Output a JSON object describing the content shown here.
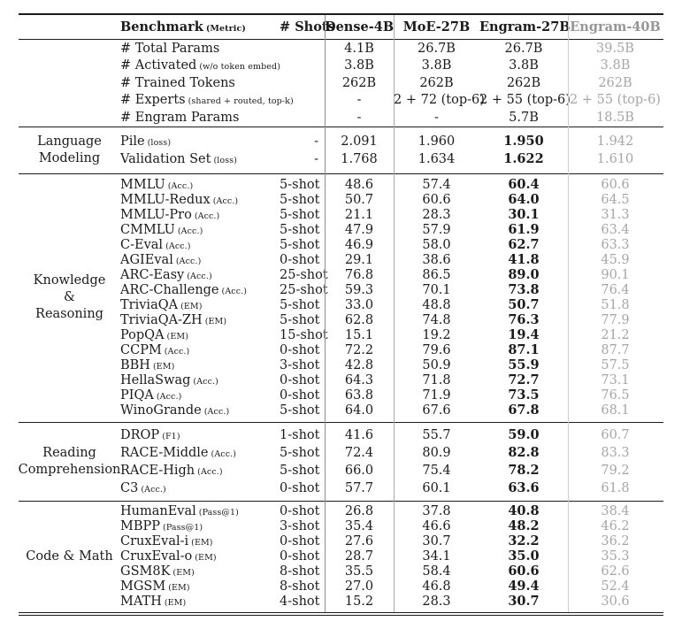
{
  "colors": {
    "text": "#1b1b1b",
    "muted_column_text": "#a6a6a6",
    "rule_dark": "#1b1b1b",
    "vline_shots": "#8f8f8f",
    "vline_dense": "#ababab",
    "vline_engram40": "#cccccc"
  },
  "header": {
    "benchmark_label": "Benchmark",
    "metric_label": "(Metric)",
    "shots_label": "# Shots",
    "models": [
      "Dense-4B",
      "MoE-27B",
      "Engram-27B",
      "Engram-40B"
    ]
  },
  "sections": [
    {
      "label_lines": [],
      "emphasize_engram27": false,
      "rows": [
        {
          "name": "# Total Params",
          "sub": "",
          "shots": "",
          "values": [
            "4.1B",
            "26.7B",
            "26.7B",
            "39.5B"
          ]
        },
        {
          "name": "# Activated",
          "sub": "(w/o token embed)",
          "shots": "",
          "values": [
            "3.8B",
            "3.8B",
            "3.8B",
            "3.8B"
          ]
        },
        {
          "name": "# Trained Tokens",
          "sub": "",
          "shots": "",
          "values": [
            "262B",
            "262B",
            "262B",
            "262B"
          ]
        },
        {
          "name": "# Experts",
          "sub": "(shared + routed, top-k)",
          "shots": "",
          "values": [
            "-",
            "2 + 72 (top-6)",
            "2 + 55 (top-6)",
            "2 + 55 (top-6)"
          ]
        },
        {
          "name": "# Engram Params",
          "sub": "",
          "shots": "",
          "values": [
            "-",
            "-",
            "5.7B",
            "18.5B"
          ]
        }
      ]
    },
    {
      "label_lines": [
        "Language",
        "Modeling"
      ],
      "emphasize_engram27": true,
      "rows": [
        {
          "name": "Pile",
          "sub": "(loss)",
          "shots": "-",
          "values": [
            "2.091",
            "1.960",
            "1.950",
            "1.942"
          ]
        },
        {
          "name": "Validation Set",
          "sub": "(loss)",
          "shots": "-",
          "values": [
            "1.768",
            "1.634",
            "1.622",
            "1.610"
          ]
        }
      ]
    },
    {
      "label_lines": [
        "Knowledge",
        "&",
        "Reasoning"
      ],
      "emphasize_engram27": true,
      "rows": [
        {
          "name": "MMLU",
          "sub": "(Acc.)",
          "shots": "5-shot",
          "values": [
            "48.6",
            "57.4",
            "60.4",
            "60.6"
          ]
        },
        {
          "name": "MMLU-Redux",
          "sub": "(Acc.)",
          "shots": "5-shot",
          "values": [
            "50.7",
            "60.6",
            "64.0",
            "64.5"
          ]
        },
        {
          "name": "MMLU-Pro",
          "sub": "(Acc.)",
          "shots": "5-shot",
          "values": [
            "21.1",
            "28.3",
            "30.1",
            "31.3"
          ]
        },
        {
          "name": "CMMLU",
          "sub": "(Acc.)",
          "shots": "5-shot",
          "values": [
            "47.9",
            "57.9",
            "61.9",
            "63.4"
          ]
        },
        {
          "name": "C-Eval",
          "sub": "(Acc.)",
          "shots": "5-shot",
          "values": [
            "46.9",
            "58.0",
            "62.7",
            "63.3"
          ]
        },
        {
          "name": "AGIEval",
          "sub": "(Acc.)",
          "shots": "0-shot",
          "values": [
            "29.1",
            "38.6",
            "41.8",
            "45.9"
          ]
        },
        {
          "name": "ARC-Easy",
          "sub": "(Acc.)",
          "shots": "25-shot",
          "values": [
            "76.8",
            "86.5",
            "89.0",
            "90.1"
          ]
        },
        {
          "name": "ARC-Challenge",
          "sub": "(Acc.)",
          "shots": "25-shot",
          "values": [
            "59.3",
            "70.1",
            "73.8",
            "76.4"
          ]
        },
        {
          "name": "TriviaQA",
          "sub": "(EM)",
          "shots": "5-shot",
          "values": [
            "33.0",
            "48.8",
            "50.7",
            "51.8"
          ]
        },
        {
          "name": "TriviaQA-ZH",
          "sub": "(EM)",
          "shots": "5-shot",
          "values": [
            "62.8",
            "74.8",
            "76.3",
            "77.9"
          ]
        },
        {
          "name": "PopQA",
          "sub": "(EM)",
          "shots": "15-shot",
          "values": [
            "15.1",
            "19.2",
            "19.4",
            "21.2"
          ]
        },
        {
          "name": "CCPM",
          "sub": "(Acc.)",
          "shots": "0-shot",
          "values": [
            "72.2",
            "79.6",
            "87.1",
            "87.7"
          ]
        },
        {
          "name": "BBH",
          "sub": "(EM)",
          "shots": "3-shot",
          "values": [
            "42.8",
            "50.9",
            "55.9",
            "57.5"
          ]
        },
        {
          "name": "HellaSwag",
          "sub": "(Acc.)",
          "shots": "0-shot",
          "values": [
            "64.3",
            "71.8",
            "72.7",
            "73.1"
          ]
        },
        {
          "name": "PIQA",
          "sub": "(Acc.)",
          "shots": "0-shot",
          "values": [
            "63.8",
            "71.9",
            "73.5",
            "76.5"
          ]
        },
        {
          "name": "WinoGrande",
          "sub": "(Acc.)",
          "shots": "5-shot",
          "values": [
            "64.0",
            "67.6",
            "67.8",
            "68.1"
          ]
        }
      ]
    },
    {
      "label_lines": [
        "Reading",
        "Comprehension"
      ],
      "emphasize_engram27": true,
      "rows": [
        {
          "name": "DROP",
          "sub": "(F1)",
          "shots": "1-shot",
          "values": [
            "41.6",
            "55.7",
            "59.0",
            "60.7"
          ]
        },
        {
          "name": "RACE-Middle",
          "sub": "(Acc.)",
          "shots": "5-shot",
          "values": [
            "72.4",
            "80.9",
            "82.8",
            "83.3"
          ]
        },
        {
          "name": "RACE-High",
          "sub": "(Acc.)",
          "shots": "5-shot",
          "values": [
            "66.0",
            "75.4",
            "78.2",
            "79.2"
          ]
        },
        {
          "name": "C3",
          "sub": "(Acc.)",
          "shots": "0-shot",
          "values": [
            "57.7",
            "60.1",
            "63.6",
            "61.8"
          ]
        }
      ]
    },
    {
      "label_lines": [
        "Code & Math"
      ],
      "emphasize_engram27": true,
      "rows": [
        {
          "name": "HumanEval",
          "sub": "(Pass@1)",
          "shots": "0-shot",
          "values": [
            "26.8",
            "37.8",
            "40.8",
            "38.4"
          ]
        },
        {
          "name": "MBPP",
          "sub": "(Pass@1)",
          "shots": "3-shot",
          "values": [
            "35.4",
            "46.6",
            "48.2",
            "46.2"
          ]
        },
        {
          "name": "CruxEval-i",
          "sub": "(EM)",
          "shots": "0-shot",
          "values": [
            "27.6",
            "30.7",
            "32.2",
            "36.2"
          ]
        },
        {
          "name": "CruxEval-o",
          "sub": "(EM)",
          "shots": "0-shot",
          "values": [
            "28.7",
            "34.1",
            "35.0",
            "35.3"
          ]
        },
        {
          "name": "GSM8K",
          "sub": "(EM)",
          "shots": "8-shot",
          "values": [
            "35.5",
            "58.4",
            "60.6",
            "62.6"
          ]
        },
        {
          "name": "MGSM",
          "sub": "(EM)",
          "shots": "8-shot",
          "values": [
            "27.0",
            "46.8",
            "49.4",
            "52.4"
          ]
        },
        {
          "name": "MATH",
          "sub": "(EM)",
          "shots": "4-shot",
          "values": [
            "15.2",
            "28.3",
            "30.7",
            "30.6"
          ]
        }
      ]
    }
  ]
}
